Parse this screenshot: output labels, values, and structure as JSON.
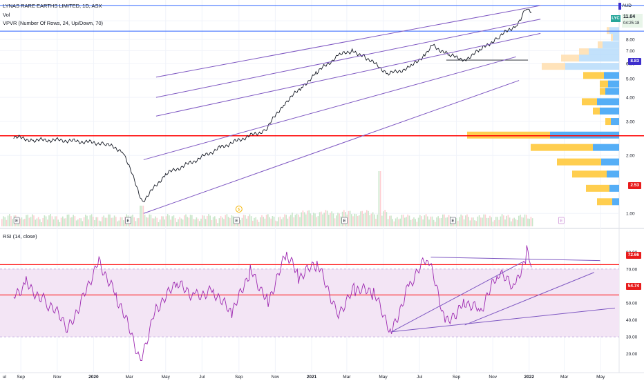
{
  "header": {
    "symbol_line": "LYNAS RARE EARTHS LIMITED, 1D, ASX",
    "vol_label": "Vol",
    "vpvr_label": "VPVR (Number Of Rows, 24, Up/Down, 70)",
    "currency": "AUD",
    "ticker": "LYC",
    "last_price": "11.04",
    "countdown": "04:25:18"
  },
  "rsi_header": {
    "label": "RSI (14, close)"
  },
  "price_tags": {
    "upper": "8.83",
    "lower": "2.53",
    "rsi_upper": "72.66",
    "rsi_lower": "54.74"
  },
  "colors": {
    "channel": "#7e57c2",
    "hline_top": "#2962ff",
    "hline_red": "#ff0000",
    "candle_up": "#131722",
    "vol_up": "#c8e6c9",
    "vol_down": "#ffcdd2",
    "vp_up_light": "#bbdefb",
    "vp_down_light": "#ffe0b2",
    "vp_up": "#42a5f5",
    "vp_down": "#ffc93c",
    "rsi_line": "#9c27b0",
    "rsi_band": "#f3e5f5",
    "tag_blue": "#3d2ecc",
    "tag_red": "#e81c1c",
    "tag_teal": "#26a69a"
  },
  "chart_data": [
    {
      "type": "line",
      "title": "LYNAS RARE EARTHS LIMITED, 1D, ASX",
      "ylabel": "AUD",
      "x_ticks": [
        "Sep",
        "Nov",
        "2020",
        "Mar",
        "May",
        "Jul",
        "Sep",
        "Nov",
        "2021",
        "Mar",
        "May",
        "Jul",
        "Sep",
        "Nov",
        "2022",
        "Mar",
        "May"
      ],
      "y_ticks": [
        "1.00",
        "2.00",
        "3.00",
        "4.00",
        "5.00",
        "6.00",
        "7.00",
        "8.00",
        "10.00"
      ],
      "ylim": [
        0.9,
        12.0
      ],
      "scale": "log",
      "series": [
        {
          "type": "line",
          "x": [
            "2019-08-20",
            "2019-09-20",
            "2019-11-05",
            "2019-12-20",
            "2020-01-20",
            "2020-02-20",
            "2020-03-23",
            "2020-05-01",
            "2020-06-15",
            "2020-08-01",
            "2020-09-15",
            "2020-10-15",
            "2020-11-15",
            "2020-12-15",
            "2021-01-10",
            "2021-02-15",
            "2021-03-10",
            "2021-04-01",
            "2021-05-10",
            "2021-06-15",
            "2021-07-10",
            "2021-07-22",
            "2021-08-20",
            "2021-09-15",
            "2021-10-10",
            "2021-11-10",
            "2021-12-10",
            "2021-12-20",
            "2021-12-28",
            "2022-01-05"
          ],
          "values": [
            2.5,
            2.4,
            2.4,
            2.35,
            2.3,
            2.1,
            1.15,
            1.6,
            1.85,
            2.2,
            2.5,
            2.7,
            3.7,
            4.5,
            5.4,
            6.6,
            7.0,
            6.5,
            5.3,
            5.7,
            6.7,
            7.5,
            6.6,
            6.3,
            7.0,
            8.2,
            9.5,
            10.5,
            11.8,
            11.04
          ]
        }
      ],
      "horizontal_levels": [
        12.0,
        8.83,
        2.53
      ],
      "earnings_markers": [
        "E",
        "E",
        "E",
        "E",
        "E",
        "E"
      ],
      "dividend_markers": [
        "$"
      ]
    },
    {
      "type": "line",
      "title": "RSI (14, close)",
      "y_ticks": [
        "20.00",
        "30.00",
        "40.00",
        "50.00",
        "60.00",
        "70.00",
        "80.00"
      ],
      "ylim": [
        15,
        85
      ],
      "band": [
        30,
        70
      ],
      "levels": [
        72.66,
        54.74
      ],
      "series": [
        {
          "name": "RSI",
          "x": [
            "2019-08-20",
            "2019-09-10",
            "2019-10-15",
            "2019-11-20",
            "2019-12-15",
            "2020-01-10",
            "2020-02-10",
            "2020-03-20",
            "2020-04-15",
            "2020-05-20",
            "2020-06-20",
            "2020-07-20",
            "2020-08-20",
            "2020-09-20",
            "2020-10-20",
            "2020-11-20",
            "2020-12-10",
            "2021-01-10",
            "2021-02-15",
            "2021-03-15",
            "2021-04-15",
            "2021-05-15",
            "2021-06-15",
            "2021-07-15",
            "2021-08-15",
            "2021-09-15",
            "2021-10-10",
            "2021-11-10",
            "2021-12-10",
            "2021-12-28",
            "2022-01-05"
          ],
          "values": [
            55,
            62,
            50,
            35,
            55,
            76,
            52,
            17,
            48,
            60,
            55,
            58,
            42,
            70,
            52,
            78,
            65,
            72,
            45,
            58,
            55,
            34,
            62,
            76,
            38,
            52,
            45,
            66,
            60,
            80,
            71
          ]
        }
      ]
    }
  ]
}
